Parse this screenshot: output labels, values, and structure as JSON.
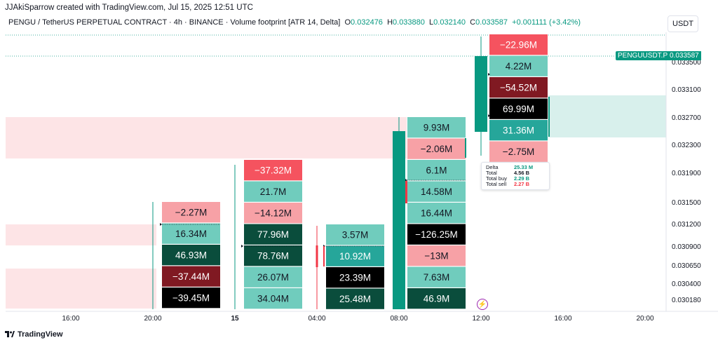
{
  "attribution": "JJAkiSparrow created with TradingView.com, Jul 15, 2025 12:51 UTC",
  "legend": {
    "symbol": "PENGU / TetherUS PERPETUAL CONTRACT · 4h · BINANCE · Volume footprint [ATR 14, Delta]",
    "o_label": "O",
    "o": "0.032476",
    "h_label": "H",
    "h": "0.033880",
    "l_label": "L",
    "l": "0.032140",
    "c_label": "C",
    "c": "0.033587",
    "change": "+0.001111 (+3.42%)"
  },
  "currency": "USDT",
  "price_tag": {
    "symbol": "PENGUUSDT.P",
    "value": "0.033587"
  },
  "tooltip": {
    "rows": [
      {
        "label": "Delta",
        "value": "25.33 M",
        "color": "#089981"
      },
      {
        "label": "Total",
        "value": "4.56 B",
        "color": "#131722"
      },
      {
        "label": "Total buy",
        "value": "2.29 B",
        "color": "#089981"
      },
      {
        "label": "Total sell",
        "value": "2.27 B",
        "color": "#f23645"
      }
    ]
  },
  "brand": "TradingView",
  "colors": {
    "up": "#089981",
    "down": "#f23645",
    "cell_dark_green": "#0a4d3c",
    "cell_green": "#26a69a",
    "cell_light_green": "#70ccbd",
    "cell_pink": "#f7a1a6",
    "cell_red": "#f5535f",
    "cell_dark_red": "#801922",
    "cell_black": "#000000",
    "zone_pink": "#fde4e6",
    "zone_green": "#d8f0ec"
  },
  "chart_data": {
    "type": "footprint",
    "title": "Volume footprint [ATR 14, Delta]",
    "x_ticks": [
      "16:00",
      "20:00",
      "15",
      "04:00",
      "08:00",
      "12:00",
      "16:00",
      "20:00"
    ],
    "y_ticks": [
      "0.033500",
      "0.033100",
      "0.032700",
      "0.032300",
      "0.031900",
      "0.031500",
      "0.031200",
      "0.030900",
      "0.030650",
      "0.030400",
      "0.030180"
    ],
    "last_price": 0.033587,
    "bars": [
      {
        "time": "20:00",
        "direction": "up",
        "cells": [
          {
            "delta": "−2.27M",
            "shade": "pink"
          },
          {
            "delta": "16.34M",
            "shade": "light_green"
          },
          {
            "delta": "46.93M",
            "shade": "dark_green"
          },
          {
            "delta": "−37.44M",
            "shade": "dark_red"
          },
          {
            "delta": "−39.45M",
            "shade": "black"
          }
        ]
      },
      {
        "time": "00:00",
        "direction": "up",
        "cells": [
          {
            "delta": "−37.32M",
            "shade": "red"
          },
          {
            "delta": "21.7M",
            "shade": "light_green"
          },
          {
            "delta": "−14.12M",
            "shade": "pink"
          },
          {
            "delta": "77.96M",
            "shade": "dark_green"
          },
          {
            "delta": "78.76M",
            "shade": "dark_green"
          },
          {
            "delta": "26.07M",
            "shade": "light_green"
          },
          {
            "delta": "34.04M",
            "shade": "light_green"
          }
        ]
      },
      {
        "time": "04:00",
        "direction": "down",
        "cells": [
          {
            "delta": "3.57M",
            "shade": "light_green"
          },
          {
            "delta": "10.92M",
            "shade": "green"
          },
          {
            "delta": "23.39M",
            "shade": "black"
          },
          {
            "delta": "25.48M",
            "shade": "dark_green"
          }
        ]
      },
      {
        "time": "08:00",
        "direction": "up",
        "cells": [
          {
            "delta": "9.93M",
            "shade": "light_green"
          },
          {
            "delta": "−2.06M",
            "shade": "pink"
          },
          {
            "delta": "6.1M",
            "shade": "light_green"
          },
          {
            "delta": "14.58M",
            "shade": "light_green"
          },
          {
            "delta": "16.44M",
            "shade": "light_green"
          },
          {
            "delta": "−126.25M",
            "shade": "black"
          },
          {
            "delta": "−13M",
            "shade": "pink"
          },
          {
            "delta": "7.63M",
            "shade": "light_green"
          },
          {
            "delta": "46.9M",
            "shade": "dark_green"
          }
        ]
      },
      {
        "time": "12:00",
        "direction": "up",
        "cells": [
          {
            "delta": "−22.96M",
            "shade": "red"
          },
          {
            "delta": "4.22M",
            "shade": "light_green"
          },
          {
            "delta": "−54.52M",
            "shade": "dark_red"
          },
          {
            "delta": "69.99M",
            "shade": "black"
          },
          {
            "delta": "31.36M",
            "shade": "green"
          },
          {
            "delta": "−2.75M",
            "shade": "pink"
          }
        ]
      }
    ]
  }
}
